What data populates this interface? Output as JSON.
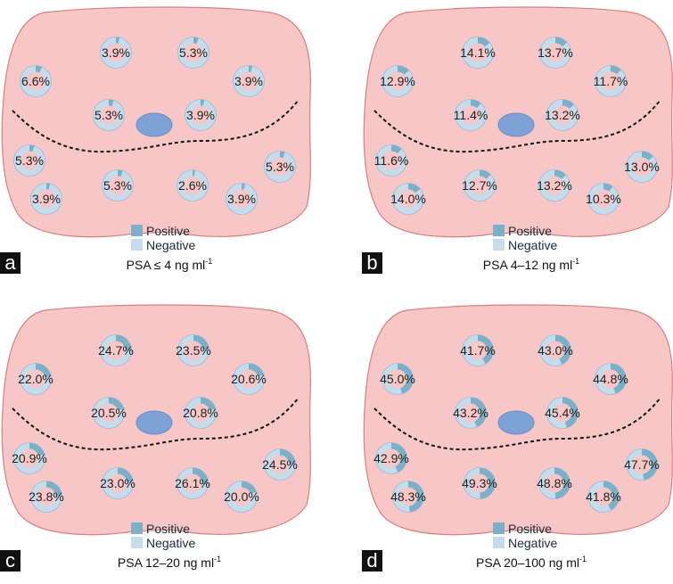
{
  "colors": {
    "prostate_fill": "#f6c7c6",
    "prostate_stroke": "#d97f80",
    "positive": "#7bb0c8",
    "negative": "#c4dcec",
    "urethra": "#7ea2d6",
    "ring_inner": "#f6c7c6"
  },
  "legend": {
    "positive": "Positive",
    "negative": "Negative"
  },
  "chart_data": [
    {
      "type": "diagram",
      "panel": "a",
      "caption": {
        "prefix": "PSA ≤ 4 ng ml",
        "sup": "-1"
      },
      "positive_rates_percent": [
        3.9,
        5.3,
        6.6,
        3.9,
        5.3,
        3.9,
        5.3,
        5.3,
        3.9,
        5.3,
        2.6,
        3.9
      ],
      "labels": [
        "3.9%",
        "5.3%",
        "6.6%",
        "3.9%",
        "5.3%",
        "3.9%",
        "5.3%",
        "5.3%",
        "3.9%",
        "5.3%",
        "2.6%",
        "3.9%"
      ]
    },
    {
      "type": "diagram",
      "panel": "b",
      "caption": {
        "prefix": "PSA 4–12 ng ml",
        "sup": "-1"
      },
      "positive_rates_percent": [
        14.1,
        13.7,
        12.9,
        11.7,
        11.4,
        13.2,
        11.6,
        13.0,
        14.0,
        12.7,
        13.2,
        10.3
      ],
      "labels": [
        "14.1%",
        "13.7%",
        "12.9%",
        "11.7%",
        "11.4%",
        "13.2%",
        "11.6%",
        "13.0%",
        "14.0%",
        "12.7%",
        "13.2%",
        "10.3%"
      ]
    },
    {
      "type": "diagram",
      "panel": "c",
      "caption": {
        "prefix": "PSA 12–20 ng ml",
        "sup": "-1"
      },
      "positive_rates_percent": [
        24.7,
        23.5,
        22.0,
        20.6,
        20.5,
        20.8,
        20.9,
        24.5,
        23.8,
        23.0,
        26.1,
        20.0
      ],
      "labels": [
        "24.7%",
        "23.5%",
        "22.0%",
        "20.6%",
        "20.5%",
        "20.8%",
        "20.9%",
        "24.5%",
        "23.8%",
        "23.0%",
        "26.1%",
        "20.0%"
      ]
    },
    {
      "type": "diagram",
      "panel": "d",
      "caption": {
        "prefix": "PSA 20–100 ng ml",
        "sup": "-1"
      },
      "positive_rates_percent": [
        41.7,
        43.0,
        45.0,
        44.8,
        43.2,
        45.4,
        42.9,
        47.7,
        48.3,
        49.3,
        48.8,
        41.8
      ],
      "labels": [
        "41.7%",
        "43.0%",
        "45.0%",
        "44.8%",
        "43.2%",
        "45.4%",
        "42.9%",
        "47.7%",
        "48.3%",
        "49.3%",
        "48.8%",
        "41.8%"
      ]
    }
  ]
}
